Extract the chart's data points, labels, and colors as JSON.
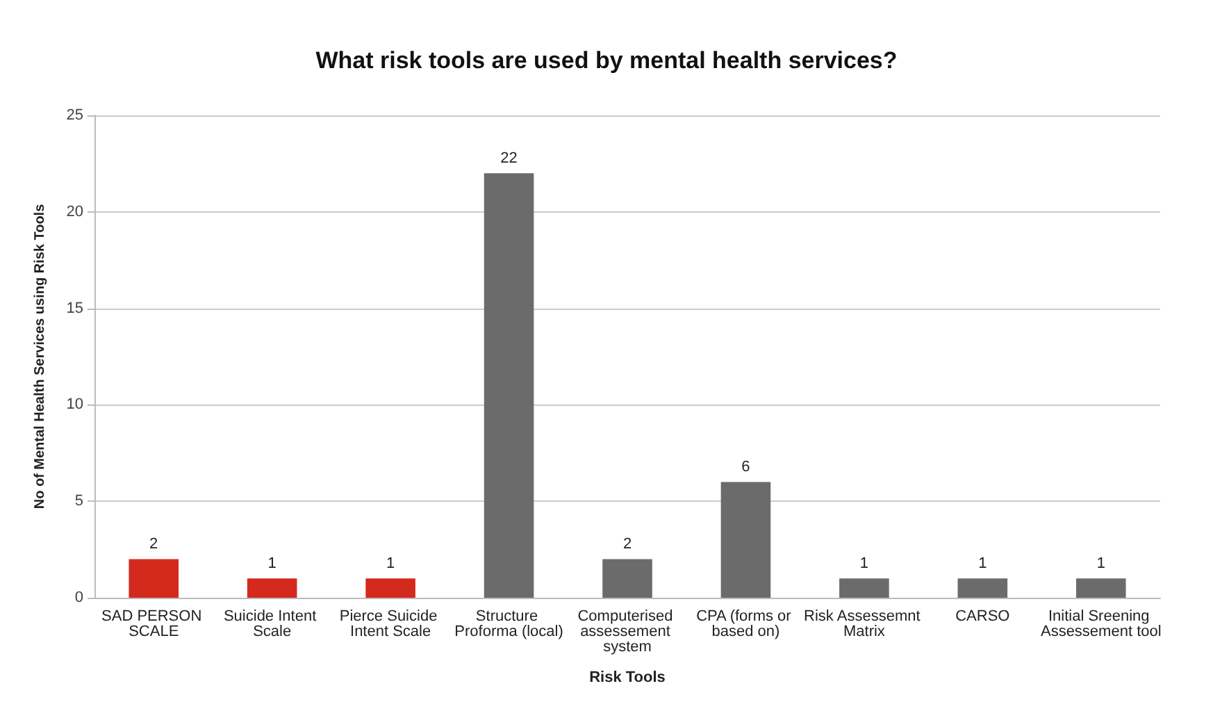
{
  "chart_data": {
    "type": "bar",
    "title": "What risk tools are used by mental health services?",
    "xlabel": "Risk Tools",
    "ylabel": "No of Mental Health Services using Risk Tools",
    "categories": [
      "SAD PERSON SCALE",
      "Suicide Intent Scale",
      "Pierce Suicide Intent Scale",
      "Structure Proforma (local)",
      "Computerised assessement system",
      "CPA (forms or based on)",
      "Risk Assessemnt Matrix",
      "CARSO",
      "Initial Sreening Assessement tool"
    ],
    "values": [
      2,
      1,
      1,
      22,
      2,
      6,
      1,
      1,
      1
    ],
    "colors": [
      "#d42a1e",
      "#d42a1e",
      "#d42a1e",
      "#6b6b6b",
      "#6b6b6b",
      "#6b6b6b",
      "#6b6b6b",
      "#6b6b6b",
      "#6b6b6b"
    ],
    "ylim": [
      0,
      25
    ],
    "yticks": [
      0,
      5,
      10,
      15,
      20,
      25
    ],
    "grid": "y",
    "data_labels": true
  }
}
